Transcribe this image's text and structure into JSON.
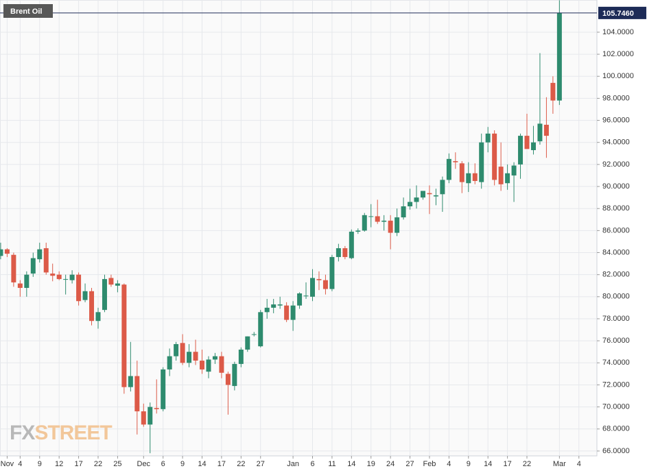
{
  "chart_data": {
    "type": "candlestick",
    "legend": "Brent Oil",
    "watermark": {
      "prefix": "FX",
      "suffix": "STREET"
    },
    "up_color": "#2e8b6e",
    "down_color": "#dc5a48",
    "last_color": "#1d2b57",
    "last": {
      "value": 105.746,
      "label": "105.7460"
    },
    "xlim": [
      -0.1,
      91.77
    ],
    "ylim": [
      65.56,
      106.92
    ],
    "grid": true,
    "yticks": [
      {
        "value": 66,
        "label": "66.0000"
      },
      {
        "value": 68,
        "label": "68.0000"
      },
      {
        "value": 70,
        "label": "70.0000"
      },
      {
        "value": 72,
        "label": "72.0000"
      },
      {
        "value": 74,
        "label": "74.0000"
      },
      {
        "value": 76,
        "label": "76.0000"
      },
      {
        "value": 78,
        "label": "78.0000"
      },
      {
        "value": 80,
        "label": "80.0000"
      },
      {
        "value": 82,
        "label": "82.0000"
      },
      {
        "value": 84,
        "label": "84.0000"
      },
      {
        "value": 86,
        "label": "86.0000"
      },
      {
        "value": 88,
        "label": "88.0000"
      },
      {
        "value": 90,
        "label": "90.0000"
      },
      {
        "value": 92,
        "label": "92.0000"
      },
      {
        "value": 94,
        "label": "94.0000"
      },
      {
        "value": 96,
        "label": "96.0000"
      },
      {
        "value": 98,
        "label": "98.0000"
      },
      {
        "value": 100,
        "label": "100.0000"
      },
      {
        "value": 102,
        "label": "102.0000"
      },
      {
        "value": 104,
        "label": "104.0000"
      }
    ],
    "xticks": [
      {
        "value": 1,
        "label": "Nov"
      },
      {
        "value": 3,
        "label": "4"
      },
      {
        "value": 6,
        "label": "9"
      },
      {
        "value": 9,
        "label": "12"
      },
      {
        "value": 12,
        "label": "17"
      },
      {
        "value": 15,
        "label": "22"
      },
      {
        "value": 18,
        "label": "25"
      },
      {
        "value": 22,
        "label": "Dec"
      },
      {
        "value": 25,
        "label": "6"
      },
      {
        "value": 28,
        "label": "9"
      },
      {
        "value": 31,
        "label": "14"
      },
      {
        "value": 34,
        "label": "17"
      },
      {
        "value": 37,
        "label": "22"
      },
      {
        "value": 40,
        "label": "27"
      },
      {
        "value": 45,
        "label": "Jan"
      },
      {
        "value": 48,
        "label": "6"
      },
      {
        "value": 51,
        "label": "11"
      },
      {
        "value": 54,
        "label": "14"
      },
      {
        "value": 57,
        "label": "19"
      },
      {
        "value": 60,
        "label": "24"
      },
      {
        "value": 63,
        "label": "27"
      },
      {
        "value": 66,
        "label": "Feb"
      },
      {
        "value": 69,
        "label": "4"
      },
      {
        "value": 72,
        "label": "9"
      },
      {
        "value": 75,
        "label": "14"
      },
      {
        "value": 78,
        "label": "17"
      },
      {
        "value": 81,
        "label": "22"
      },
      {
        "value": 86,
        "label": "Mar"
      },
      {
        "value": 89,
        "label": "4"
      }
    ],
    "x": [
      0,
      1,
      2,
      3,
      4,
      5,
      6,
      7,
      8,
      9,
      10,
      11,
      12,
      13,
      14,
      15,
      16,
      17,
      18,
      19,
      20,
      21,
      22,
      23,
      24,
      25,
      26,
      27,
      28,
      29,
      30,
      31,
      32,
      33,
      34,
      35,
      36,
      37,
      38,
      39,
      40,
      41,
      42,
      43,
      44,
      45,
      46,
      47,
      48,
      49,
      50,
      51,
      52,
      53,
      54,
      55,
      56,
      57,
      58,
      59,
      60,
      61,
      62,
      63,
      64,
      65,
      66,
      67,
      68,
      69,
      70,
      71,
      72,
      73,
      74,
      75,
      76,
      77,
      78,
      79,
      80,
      81,
      82,
      83,
      84,
      85,
      86
    ],
    "open": [
      83.7,
      84.3,
      83.8,
      81.2,
      80.8,
      82.1,
      83.4,
      84.4,
      82.1,
      82.0,
      81.6,
      81.5,
      82.0,
      79.7,
      80.5,
      77.8,
      78.8,
      81.7,
      81.0,
      81.1,
      71.8,
      72.8,
      69.6,
      68.4,
      69.9,
      69.8,
      73.4,
      74.6,
      75.8,
      74.0,
      75.0,
      74.2,
      73.2,
      74.3,
      74.6,
      73.0,
      71.9,
      73.9,
      75.2,
      76.6,
      75.5,
      78.6,
      79.0,
      79.2,
      79.2,
      77.9,
      79.2,
      80.1,
      80.0,
      81.6,
      81.5,
      80.7,
      83.6,
      84.4,
      83.5,
      85.9,
      86.0,
      87.3,
      87.3,
      86.8,
      86.9,
      85.8,
      87.2,
      88.2,
      88.6,
      89.0,
      89.4,
      89.1,
      89.3,
      90.6,
      92.3,
      92.1,
      90.3,
      91.2,
      90.4,
      94.0,
      94.8,
      91.8,
      90.3,
      91.0,
      92.0,
      94.6,
      93.3,
      94.1,
      95.6,
      99.4,
      97.8
    ],
    "high": [
      84.9,
      84.4,
      84.0,
      81.5,
      82.3,
      84.0,
      84.9,
      84.9,
      83.0,
      82.3,
      82.0,
      82.4,
      82.2,
      81.2,
      80.8,
      79.0,
      82.0,
      82.0,
      81.5,
      81.2,
      75.9,
      74.2,
      70.3,
      70.4,
      72.5,
      73.6,
      75.3,
      75.9,
      76.6,
      75.7,
      76.1,
      75.2,
      74.6,
      74.9,
      75.0,
      73.2,
      74.1,
      75.4,
      76.4,
      76.8,
      78.8,
      79.8,
      79.8,
      80.0,
      79.5,
      79.6,
      80.4,
      81.3,
      82.5,
      82.3,
      82.0,
      83.8,
      84.8,
      84.6,
      86.1,
      86.2,
      87.6,
      88.4,
      88.8,
      87.4,
      87.4,
      88.0,
      89.0,
      89.8,
      90.1,
      89.6,
      90.1,
      89.8,
      90.9,
      93.0,
      93.1,
      92.3,
      92.2,
      92.1,
      94.8,
      95.4,
      95.1,
      94.0,
      92.0,
      92.2,
      94.8,
      96.6,
      95.5,
      102.1,
      98.1,
      100.0,
      106.9
    ],
    "low": [
      83.4,
      83.6,
      80.9,
      80.0,
      80.0,
      81.8,
      83.1,
      82.0,
      81.4,
      81.5,
      80.2,
      81.2,
      79.2,
      79.5,
      77.4,
      77.1,
      78.6,
      80.9,
      80.4,
      71.2,
      71.4,
      67.5,
      68.2,
      65.8,
      69.4,
      69.6,
      72.8,
      74.2,
      73.8,
      73.6,
      73.8,
      73.0,
      72.6,
      73.9,
      72.6,
      69.3,
      71.5,
      73.6,
      75.0,
      76.4,
      75.4,
      78.0,
      78.5,
      78.9,
      77.7,
      76.9,
      78.9,
      79.8,
      79.6,
      80.6,
      80.2,
      80.5,
      83.2,
      83.4,
      83.4,
      85.7,
      85.9,
      86.3,
      86.6,
      86.0,
      84.3,
      85.5,
      87.0,
      87.9,
      88.0,
      88.8,
      87.5,
      88.3,
      87.7,
      90.3,
      91.6,
      89.4,
      89.5,
      90.2,
      89.8,
      93.1,
      90.1,
      89.6,
      89.7,
      88.6,
      90.7,
      93.5,
      92.9,
      93.8,
      92.6,
      96.6,
      97.4
    ],
    "close": [
      84.3,
      83.9,
      81.3,
      80.8,
      82.0,
      83.5,
      84.3,
      82.2,
      81.9,
      81.6,
      81.6,
      82.0,
      79.6,
      80.5,
      77.8,
      78.6,
      81.6,
      81.1,
      81.2,
      71.8,
      72.8,
      69.6,
      68.4,
      70.0,
      69.8,
      73.4,
      74.6,
      75.7,
      74.0,
      75.0,
      74.2,
      73.4,
      74.3,
      74.6,
      73.1,
      72.0,
      73.9,
      75.2,
      76.4,
      76.6,
      78.6,
      79.0,
      79.3,
      79.3,
      77.9,
      79.2,
      80.3,
      80.1,
      81.7,
      81.5,
      80.7,
      83.6,
      84.4,
      83.6,
      85.9,
      86.0,
      87.4,
      87.3,
      86.8,
      86.9,
      85.8,
      87.2,
      88.2,
      88.6,
      89.0,
      89.6,
      89.3,
      89.2,
      90.6,
      92.5,
      92.2,
      90.4,
      91.2,
      90.5,
      94.0,
      94.8,
      90.6,
      90.2,
      91.2,
      91.9,
      94.6,
      93.4,
      94.0,
      95.7,
      94.6,
      97.8,
      105.746
    ]
  }
}
